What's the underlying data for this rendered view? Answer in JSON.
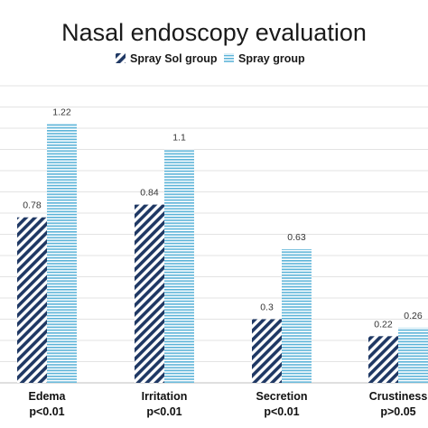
{
  "chart_data": {
    "type": "bar",
    "title": "Nasal endoscopy evaluation",
    "categories": [
      "Edema",
      "Irritation",
      "Secretion",
      "Crustiness"
    ],
    "category_notes": [
      "p<0.01",
      "p<0.01",
      "p<0.01",
      "p>0.05"
    ],
    "series": [
      {
        "name": "Spray Sol group",
        "values": [
          0.78,
          0.84,
          0.3,
          0.22
        ],
        "color": "#1f3864",
        "pattern": "diagonal-stripes"
      },
      {
        "name": "Spray group",
        "values": [
          1.22,
          1.1,
          0.63,
          0.26
        ],
        "color": "#5bb3d8",
        "pattern": "horizontal-stripes"
      }
    ],
    "data_labels": [
      [
        "0.78",
        "0.84",
        "0.3",
        "0.22"
      ],
      [
        "1.22",
        "1.1",
        "0.63",
        "0.26"
      ]
    ],
    "ylim": [
      0,
      1.4
    ],
    "grid": true,
    "legend_position": "top-center",
    "xlabel": "",
    "ylabel": ""
  }
}
